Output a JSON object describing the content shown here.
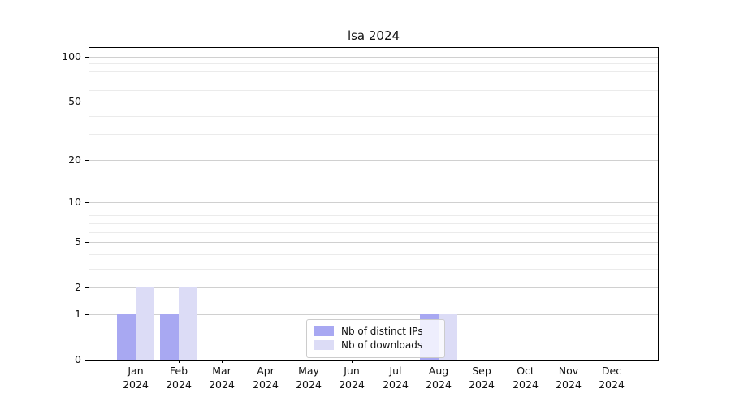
{
  "chart_data": {
    "type": "bar",
    "title": "lsa 2024",
    "categories": [
      "Jan",
      "Feb",
      "Mar",
      "Apr",
      "May",
      "Jun",
      "Jul",
      "Aug",
      "Sep",
      "Oct",
      "Nov",
      "Dec"
    ],
    "category_year": "2024",
    "series": [
      {
        "name": "Nb of distinct IPs",
        "color": "#a8a8f2",
        "values": [
          1,
          1,
          0,
          0,
          0,
          0,
          0,
          1,
          0,
          0,
          0,
          0
        ]
      },
      {
        "name": "Nb of downloads",
        "color": "#dcdcf6",
        "values": [
          2,
          2,
          0,
          0,
          0,
          0,
          0,
          1,
          0,
          0,
          0,
          0
        ]
      }
    ],
    "yscale": "log1p",
    "ylim": [
      0,
      100
    ],
    "yticks": [
      0,
      1,
      2,
      5,
      10,
      20,
      50,
      100
    ],
    "grid_values_major": [
      1,
      2,
      5,
      10,
      20,
      50,
      100
    ],
    "grid_values_minor": [
      3,
      4,
      6,
      7,
      8,
      9,
      30,
      40,
      60,
      70,
      80,
      90
    ],
    "grid": "horizontal",
    "legend_position": "lower-center-inside"
  },
  "colors": {
    "background": "#ffffff",
    "spine": "#000000",
    "grid_major": "#d0d0d0",
    "grid_minor": "#ebebeb",
    "text": "#111111",
    "legend_border": "#cccccc"
  }
}
